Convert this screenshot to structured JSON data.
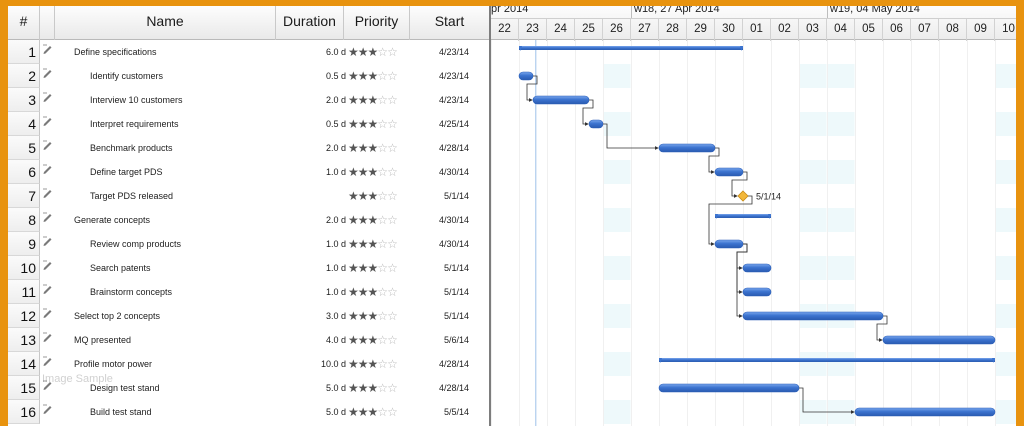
{
  "columns": {
    "num": "#",
    "name": "Name",
    "duration": "Duration",
    "priority": "Priority",
    "start": "Start"
  },
  "timeline": {
    "weeks": [
      {
        "label": "pr 2014",
        "first_day_index": 0
      },
      {
        "label": "w18, 27 Apr 2014",
        "first_day_index": 5
      },
      {
        "label": "w19, 04 May 2014",
        "first_day_index": 12
      }
    ],
    "days": [
      "22",
      "23",
      "24",
      "25",
      "26",
      "27",
      "28",
      "29",
      "30",
      "01",
      "02",
      "03",
      "04",
      "05",
      "06",
      "07",
      "08",
      "09",
      "10"
    ],
    "weekend_day_indices": [
      4,
      11,
      12,
      18
    ]
  },
  "rows": [
    {
      "num": "1",
      "name": "Define specifications",
      "level": 0,
      "duration": "6.0 d",
      "priority": 3,
      "start": "4/23/14",
      "bar": {
        "kind": "summary",
        "start_day": 1,
        "end_day": 9
      }
    },
    {
      "num": "2",
      "name": "Identify customers",
      "level": 1,
      "duration": "0.5 d",
      "priority": 3,
      "start": "4/23/14",
      "bar": {
        "kind": "task",
        "start_day": 1,
        "end_day": 1.5
      }
    },
    {
      "num": "3",
      "name": "Interview 10 customers",
      "level": 1,
      "duration": "2.0 d",
      "priority": 3,
      "start": "4/23/14",
      "bar": {
        "kind": "task",
        "start_day": 1.5,
        "end_day": 3.5
      }
    },
    {
      "num": "4",
      "name": "Interpret requirements",
      "level": 1,
      "duration": "0.5 d",
      "priority": 3,
      "start": "4/25/14",
      "bar": {
        "kind": "task",
        "start_day": 3.5,
        "end_day": 4
      }
    },
    {
      "num": "5",
      "name": "Benchmark products",
      "level": 1,
      "duration": "2.0 d",
      "priority": 3,
      "start": "4/28/14",
      "bar": {
        "kind": "task",
        "start_day": 6,
        "end_day": 8
      }
    },
    {
      "num": "6",
      "name": "Define target PDS",
      "level": 1,
      "duration": "1.0 d",
      "priority": 3,
      "start": "4/30/14",
      "bar": {
        "kind": "task",
        "start_day": 8,
        "end_day": 9
      }
    },
    {
      "num": "7",
      "name": "Target PDS released",
      "level": 1,
      "duration": "",
      "priority": 3,
      "start": "5/1/14",
      "bar": {
        "kind": "milestone",
        "start_day": 9,
        "end_day": 9,
        "label": "5/1/14"
      }
    },
    {
      "num": "8",
      "name": "Generate concepts",
      "level": 0,
      "duration": "2.0 d",
      "priority": 3,
      "start": "4/30/14",
      "bar": {
        "kind": "summary",
        "start_day": 8,
        "end_day": 10
      }
    },
    {
      "num": "9",
      "name": "Review comp products",
      "level": 1,
      "duration": "1.0 d",
      "priority": 3,
      "start": "4/30/14",
      "bar": {
        "kind": "task",
        "start_day": 8,
        "end_day": 9
      }
    },
    {
      "num": "10",
      "name": "Search patents",
      "level": 1,
      "duration": "1.0 d",
      "priority": 3,
      "start": "5/1/14",
      "bar": {
        "kind": "task",
        "start_day": 9,
        "end_day": 10
      }
    },
    {
      "num": "11",
      "name": "Brainstorm concepts",
      "level": 1,
      "duration": "1.0 d",
      "priority": 3,
      "start": "5/1/14",
      "bar": {
        "kind": "task",
        "start_day": 9,
        "end_day": 10
      }
    },
    {
      "num": "12",
      "name": "Select top 2 concepts",
      "level": 0,
      "duration": "3.0 d",
      "priority": 3,
      "start": "5/1/14",
      "bar": {
        "kind": "task",
        "start_day": 9,
        "end_day": 14
      }
    },
    {
      "num": "13",
      "name": "MQ presented",
      "level": 0,
      "duration": "4.0 d",
      "priority": 3,
      "start": "5/6/14",
      "bar": {
        "kind": "task",
        "start_day": 14,
        "end_day": 18
      }
    },
    {
      "num": "14",
      "name": "Profile motor power",
      "level": 0,
      "duration": "10.0 d",
      "priority": 3,
      "start": "4/28/14",
      "bar": {
        "kind": "summary",
        "start_day": 6,
        "end_day": 18
      }
    },
    {
      "num": "15",
      "name": "Design test stand",
      "level": 1,
      "duration": "5.0 d",
      "priority": 3,
      "start": "4/28/14",
      "bar": {
        "kind": "task",
        "start_day": 6,
        "end_day": 11
      }
    },
    {
      "num": "16",
      "name": "Build test stand",
      "level": 1,
      "duration": "5.0 d",
      "priority": 3,
      "start": "5/5/14",
      "bar": {
        "kind": "task",
        "start_day": 13,
        "end_day": 18
      }
    }
  ],
  "dependencies": [
    [
      2,
      3
    ],
    [
      3,
      4
    ],
    [
      4,
      5
    ],
    [
      5,
      6
    ],
    [
      6,
      7
    ],
    [
      7,
      9
    ],
    [
      9,
      10
    ],
    [
      9,
      11
    ],
    [
      9,
      12
    ],
    [
      12,
      13
    ],
    [
      15,
      16
    ]
  ],
  "today_day": 1.6,
  "watermark": "Image Sample",
  "colors": {
    "bar": "#3b73cf",
    "bar_light": "#7aa6ec",
    "weekend": "#eef9fb",
    "milestone": "#f2b73a",
    "today_line": "#9ec1ea",
    "dependency": "#333333"
  }
}
